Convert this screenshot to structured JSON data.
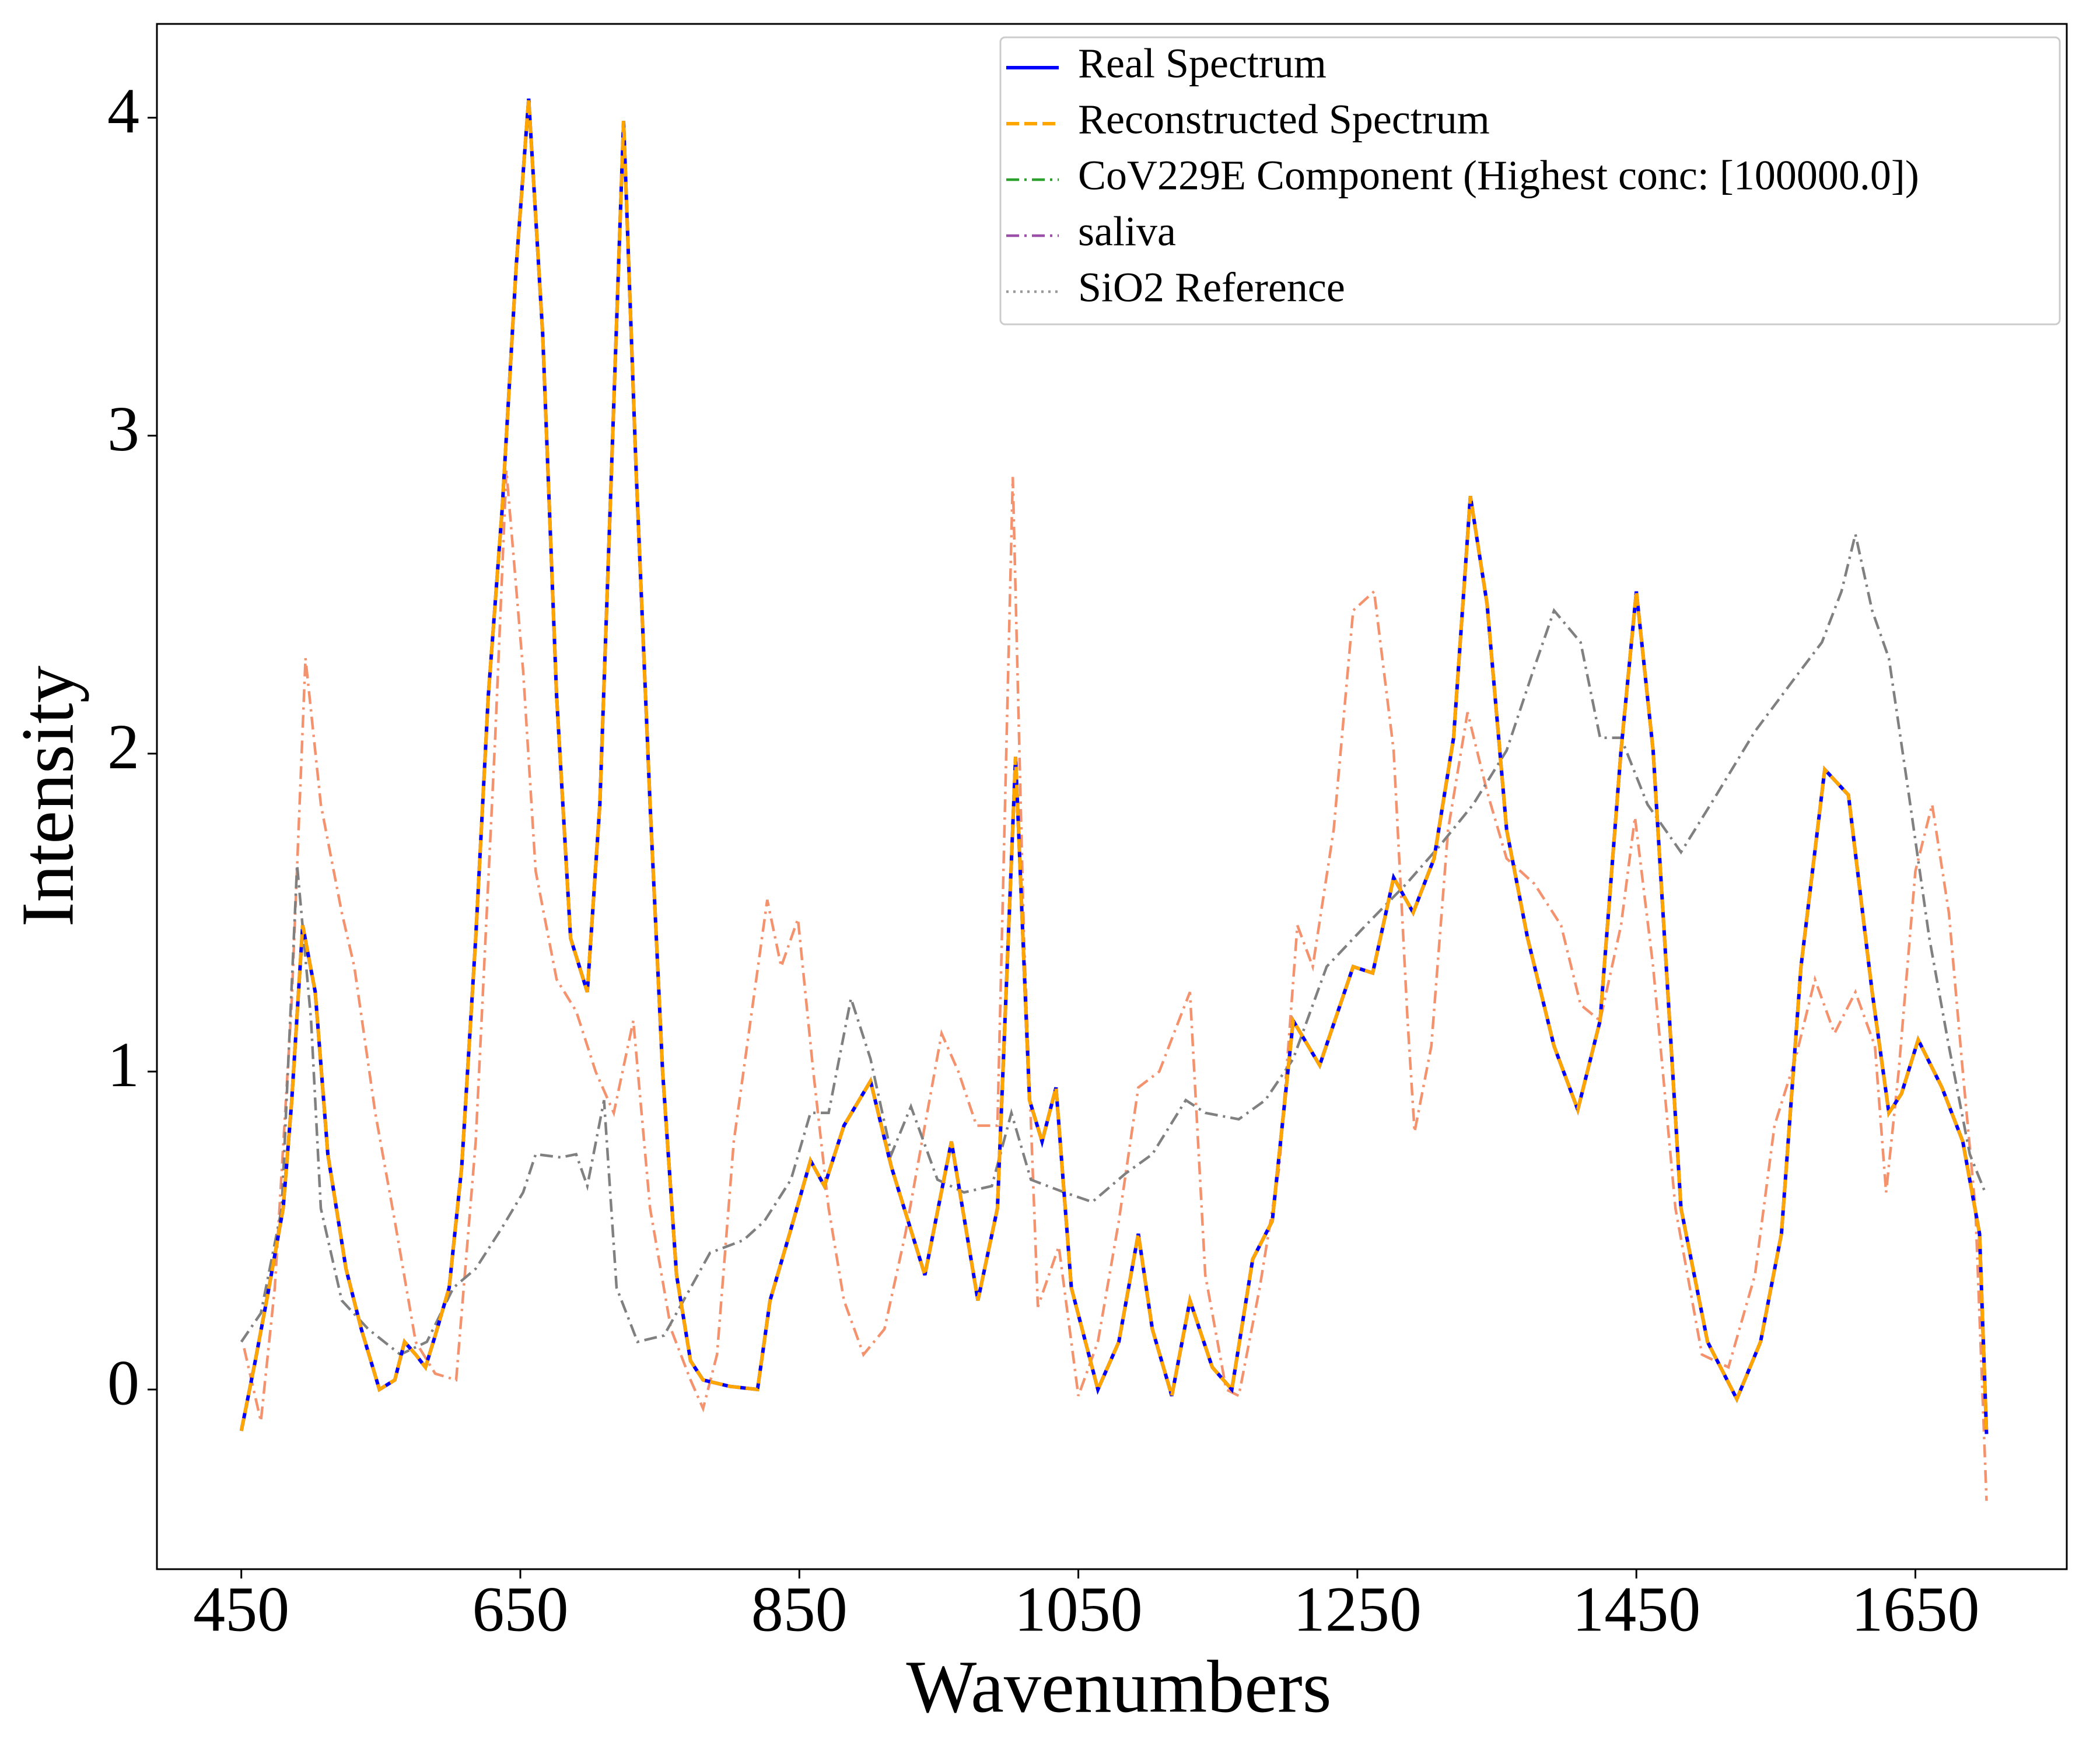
{
  "chart_data": {
    "type": "line",
    "xlabel": "Wavenumbers",
    "ylabel": "Intensity",
    "xlim": [
      389.5,
      1758.5
    ],
    "ylim": [
      -0.565,
      4.295
    ],
    "xticks": [
      450,
      650,
      850,
      1050,
      1250,
      1450,
      1650
    ],
    "yticks": [
      0,
      1,
      2,
      3,
      4
    ],
    "legend": "upper right",
    "x": [
      450,
      460,
      469,
      480,
      486,
      494,
      503,
      512,
      525,
      536,
      549,
      560,
      567,
      575,
      582,
      589,
      599,
      608,
      618,
      627,
      637,
      647,
      656,
      666,
      676,
      686,
      698,
      707,
      717,
      724,
      733,
      743,
      752,
      762,
      772,
      781,
      800,
      820,
      829,
      843,
      858,
      868,
      882,
      901,
      916,
      940,
      959,
      978,
      992,
      1005,
      1015,
      1024,
      1034,
      1045,
      1064,
      1079,
      1093,
      1103,
      1117,
      1130,
      1146,
      1160,
      1175,
      1189,
      1204,
      1223,
      1247,
      1261,
      1276,
      1290,
      1305,
      1319,
      1331,
      1343,
      1357,
      1372,
      1391,
      1408,
      1424,
      1439,
      1450,
      1462,
      1482,
      1501,
      1522,
      1539,
      1554,
      1568,
      1585,
      1602,
      1619,
      1631,
      1640,
      1652,
      1669,
      1684,
      1696,
      1701
    ],
    "series": [
      {
        "name": "Real Spectrum",
        "color": "#0000ff",
        "linestyle": "solid",
        "values": [
          -0.13,
          0.09,
          0.3,
          0.57,
          0.9,
          1.46,
          1.25,
          0.74,
          0.38,
          0.19,
          0,
          0.03,
          0.15,
          0.11,
          0.07,
          0.17,
          0.32,
          0.7,
          1.42,
          2.18,
          2.77,
          3.53,
          4.06,
          3.32,
          2.18,
          1.42,
          1.25,
          1.84,
          3.1,
          3.99,
          2.89,
          1.84,
          1.0,
          0.36,
          0.09,
          0.03,
          0.01,
          0,
          0.28,
          0.49,
          0.72,
          0.64,
          0.83,
          0.97,
          0.7,
          0.36,
          0.78,
          0.28,
          0.57,
          1.99,
          0.91,
          0.78,
          0.95,
          0.32,
          0,
          0.15,
          0.49,
          0.19,
          -0.02,
          0.28,
          0.07,
          0,
          0.41,
          0.53,
          1.16,
          1.02,
          1.33,
          1.31,
          1.61,
          1.5,
          1.67,
          2.05,
          2.81,
          2.47,
          1.76,
          1.42,
          1.08,
          0.88,
          1.16,
          2.01,
          2.51,
          2.01,
          0.57,
          0.15,
          -0.03,
          0.15,
          0.49,
          1.33,
          1.95,
          1.87,
          1.25,
          0.87,
          0.93,
          1.1,
          0.95,
          0.78,
          0.49,
          -0.14
        ]
      },
      {
        "name": "Reconstructed Spectrum",
        "color": "#ffa500",
        "linestyle": "dashed",
        "values": [
          -0.13,
          0.09,
          0.3,
          0.57,
          0.9,
          1.46,
          1.25,
          0.74,
          0.38,
          0.19,
          0,
          0.03,
          0.15,
          0.11,
          0.07,
          0.17,
          0.32,
          0.7,
          1.42,
          2.18,
          2.77,
          3.53,
          4.06,
          3.32,
          2.18,
          1.42,
          1.25,
          1.84,
          3.1,
          3.99,
          2.89,
          1.84,
          1.0,
          0.36,
          0.09,
          0.03,
          0.01,
          0,
          0.28,
          0.49,
          0.72,
          0.64,
          0.83,
          0.97,
          0.7,
          0.36,
          0.78,
          0.28,
          0.57,
          1.99,
          0.91,
          0.78,
          0.95,
          0.32,
          0,
          0.15,
          0.49,
          0.19,
          -0.02,
          0.28,
          0.07,
          0,
          0.41,
          0.53,
          1.16,
          1.02,
          1.33,
          1.31,
          1.61,
          1.5,
          1.67,
          2.05,
          2.81,
          2.47,
          1.76,
          1.42,
          1.08,
          0.88,
          1.16,
          2.01,
          2.51,
          2.01,
          0.57,
          0.15,
          -0.03,
          0.15,
          0.49,
          1.33,
          1.95,
          1.87,
          1.25,
          0.87,
          0.93,
          1.1,
          0.95,
          0.78,
          0.49,
          -0.14
        ]
      },
      {
        "name": "CoV229E Component (Highest conc: [100000.0])",
        "color": "#f4926e",
        "legend_color": "#2ca02c",
        "linestyle": "dashdot",
        "x": [
          452,
          464,
          474,
          486,
          496,
          507,
          522,
          531,
          546,
          560,
          575,
          589,
          604,
          618,
          632,
          640,
          652,
          661,
          676,
          690,
          704,
          717,
          731,
          743,
          758,
          772,
          781,
          791,
          803,
          815,
          827,
          837,
          849,
          860,
          871,
          882,
          896,
          911,
          926,
          940,
          952,
          964,
          977,
          992,
          1003,
          1011,
          1021,
          1036,
          1050,
          1064,
          1079,
          1093,
          1108,
          1122,
          1130,
          1141,
          1156,
          1165,
          1180,
          1194,
          1207,
          1218,
          1233,
          1247,
          1262,
          1276,
          1286,
          1291,
          1303,
          1315,
          1329,
          1343,
          1357,
          1377,
          1396,
          1410,
          1424,
          1439,
          1449,
          1462,
          1478,
          1497,
          1516,
          1535,
          1549,
          1564,
          1578,
          1592,
          1607,
          1621,
          1629,
          1638,
          1650,
          1662,
          1674,
          1684,
          1693,
          1701
        ],
        "values": [
          0.13,
          -0.1,
          0.32,
          1.21,
          2.3,
          1.84,
          1.5,
          1.33,
          0.87,
          0.53,
          0.15,
          0.05,
          0.03,
          0.78,
          2.05,
          2.89,
          2.26,
          1.63,
          1.29,
          1.19,
          1.0,
          0.87,
          1.16,
          0.57,
          0.19,
          0.03,
          -0.06,
          0.11,
          0.78,
          1.16,
          1.54,
          1.33,
          1.48,
          1.0,
          0.57,
          0.28,
          0.11,
          0.19,
          0.49,
          0.83,
          1.12,
          1.0,
          0.83,
          0.83,
          2.87,
          1.42,
          0.26,
          0.45,
          -0.02,
          0.15,
          0.53,
          0.95,
          1.0,
          1.16,
          1.25,
          0.36,
          0,
          -0.02,
          0.32,
          0.7,
          1.46,
          1.33,
          1.76,
          2.45,
          2.51,
          2.01,
          1.16,
          0.81,
          1.08,
          1.76,
          2.13,
          1.88,
          1.67,
          1.59,
          1.46,
          1.21,
          1.16,
          1.46,
          1.8,
          1.33,
          0.57,
          0.11,
          0.07,
          0.36,
          0.83,
          1.04,
          1.29,
          1.12,
          1.25,
          1.08,
          0.62,
          1.0,
          1.63,
          1.84,
          1.5,
          1.0,
          0.57,
          -0.35
        ]
      },
      {
        "name": "saliva",
        "color": "#808080",
        "legend_color": "#9b4fa8",
        "linestyle": "dashdot",
        "x": [
          450,
          464,
          479,
          490,
          500,
          507,
          522,
          541,
          564,
          583,
          602,
          618,
          637,
          652,
          661,
          679,
          690,
          698,
          710,
          719,
          734,
          753,
          767,
          786,
          810,
          825,
          844,
          858,
          871,
          887,
          901,
          916,
          930,
          949,
          968,
          988,
          1002,
          1016,
          1040,
          1060,
          1084,
          1103,
          1127,
          1141,
          1165,
          1184,
          1204,
          1228,
          1256,
          1285,
          1309,
          1333,
          1357,
          1376,
          1391,
          1410,
          1424,
          1439,
          1458,
          1482,
          1506,
          1535,
          1564,
          1583,
          1597,
          1607,
          1619,
          1631,
          1645,
          1660,
          1674,
          1689,
          1700
        ],
        "values": [
          0.15,
          0.24,
          0.57,
          1.65,
          1.16,
          0.57,
          0.28,
          0.19,
          0.11,
          0.15,
          0.32,
          0.38,
          0.51,
          0.62,
          0.74,
          0.73,
          0.74,
          0.64,
          0.91,
          0.32,
          0.15,
          0.17,
          0.28,
          0.43,
          0.47,
          0.53,
          0.66,
          0.87,
          0.87,
          1.23,
          1.04,
          0.74,
          0.89,
          0.66,
          0.62,
          0.64,
          0.87,
          0.66,
          0.62,
          0.59,
          0.68,
          0.74,
          0.91,
          0.87,
          0.85,
          0.91,
          1.04,
          1.33,
          1.46,
          1.59,
          1.71,
          1.84,
          2.01,
          2.26,
          2.45,
          2.35,
          2.05,
          2.05,
          1.84,
          1.69,
          1.86,
          2.07,
          2.24,
          2.35,
          2.51,
          2.69,
          2.45,
          2.3,
          1.88,
          1.42,
          1.08,
          0.74,
          0.62
        ]
      },
      {
        "name": "SiO2 Reference",
        "color": "#999999",
        "linestyle": "dotted"
      }
    ]
  }
}
